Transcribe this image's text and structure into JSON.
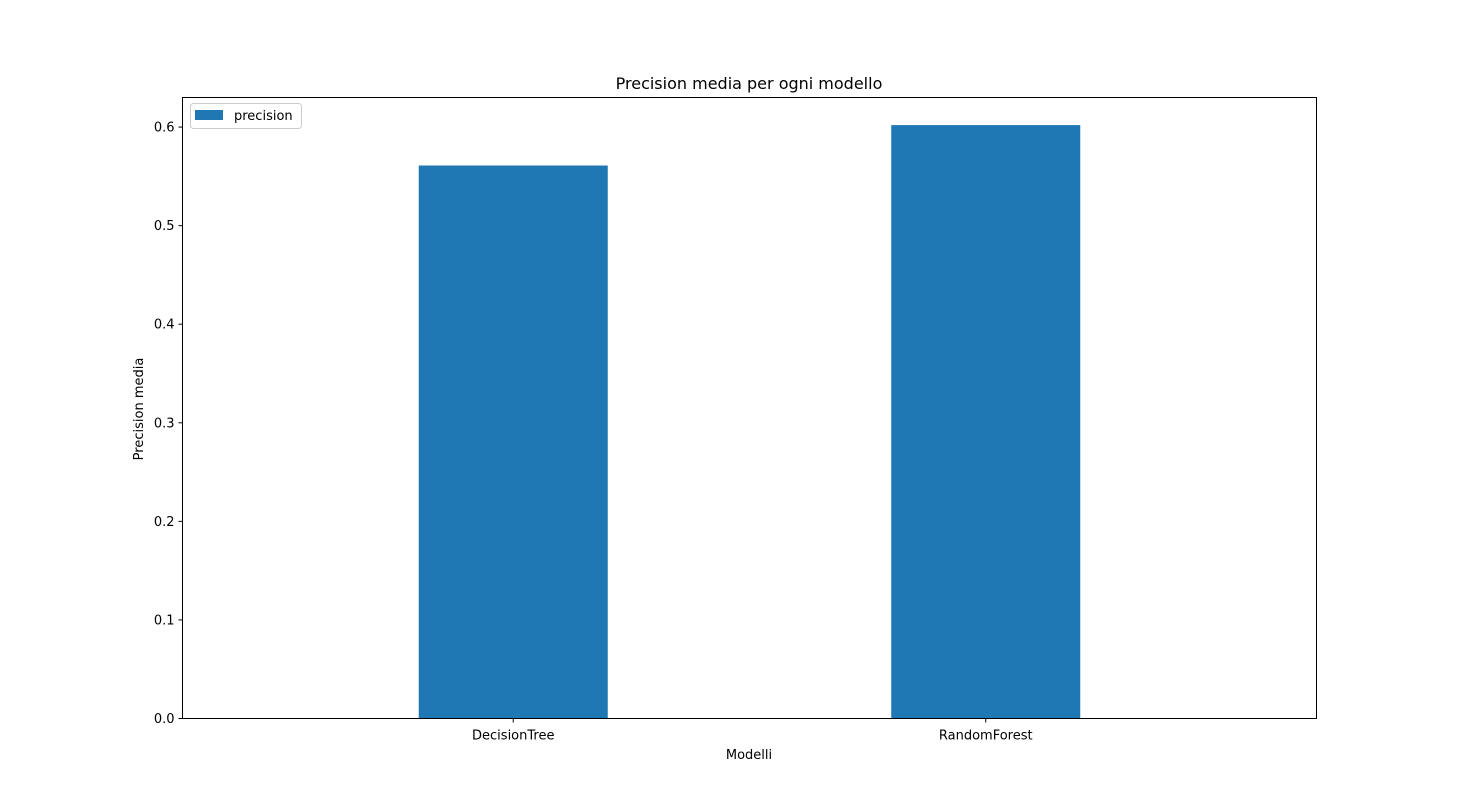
{
  "chart_data": {
    "type": "bar",
    "title": "Precision media per ogni modello",
    "xlabel": "Modelli",
    "ylabel": "Precision media",
    "categories": [
      "DecisionTree",
      "RandomForest"
    ],
    "series": [
      {
        "name": "precision",
        "values": [
          0.561,
          0.602
        ],
        "color": "#1f77b4"
      }
    ],
    "ylim": [
      0,
      0.63
    ],
    "yticks": [
      0.0,
      0.1,
      0.2,
      0.3,
      0.4,
      0.5,
      0.6
    ],
    "ytick_labels": [
      "0.0",
      "0.1",
      "0.2",
      "0.3",
      "0.4",
      "0.5",
      "0.6"
    ],
    "grid": false,
    "legend_position": "top-left"
  }
}
